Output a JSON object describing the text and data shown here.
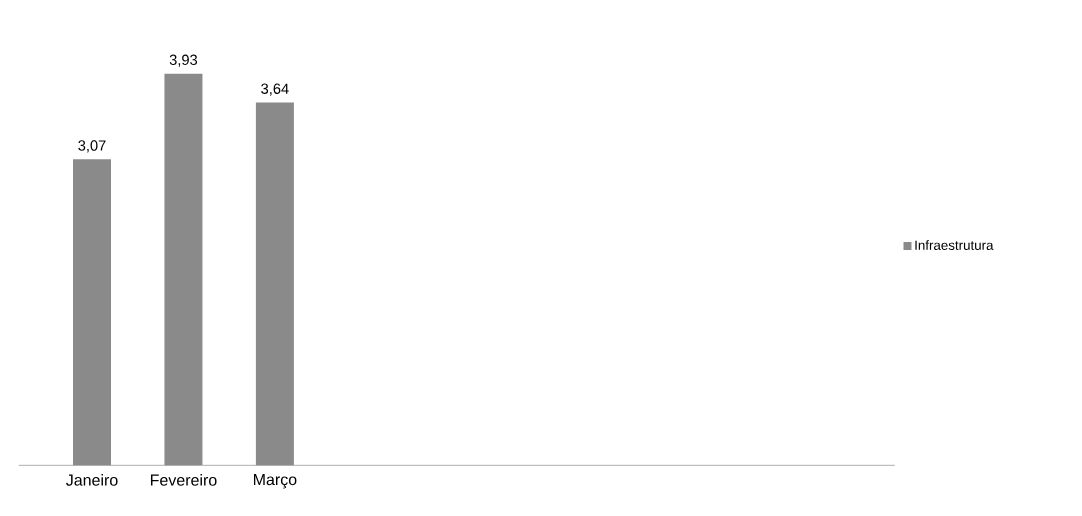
{
  "chart_data": {
    "type": "bar",
    "categories": [
      "Janeiro",
      "Fevereiro",
      "Março"
    ],
    "series": [
      {
        "name": "Infraestrutura",
        "color": "#8a8a8a",
        "values": [
          3.07,
          3.93,
          3.64
        ],
        "value_labels": [
          "3,07",
          "3,93",
          "3,64"
        ]
      }
    ],
    "legend": "right"
  }
}
